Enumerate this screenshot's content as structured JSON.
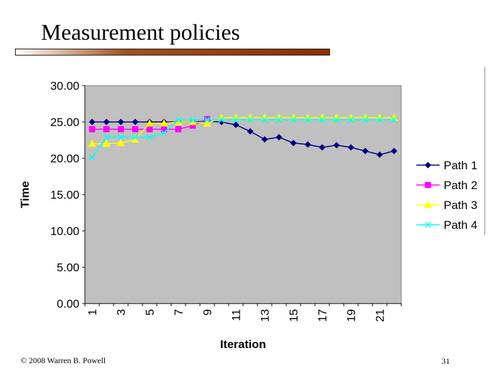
{
  "slide": {
    "title": "Measurement policies",
    "footer_left": "© 2008 Warren B. Powell",
    "page_number": "31"
  },
  "chart_data": {
    "type": "line",
    "xlabel": "Iteration",
    "ylabel": "Time",
    "ylim": [
      0,
      30
    ],
    "ytick_labels": [
      "0.00",
      "5.00",
      "10.00",
      "15.00",
      "20.00",
      "25.00",
      "30.00"
    ],
    "x": [
      1,
      2,
      3,
      4,
      5,
      6,
      7,
      8,
      9,
      10,
      11,
      12,
      13,
      14,
      15,
      16,
      17,
      18,
      19,
      20,
      21,
      22
    ],
    "xtick_labels": [
      "1",
      "3",
      "5",
      "7",
      "9",
      "11",
      "13",
      "15",
      "17",
      "19",
      "21"
    ],
    "grid": false,
    "legend_position": "right",
    "plot_background": "#c0c0c0",
    "series": [
      {
        "name": "Path 1",
        "color": "#000080",
        "marker": "diamond",
        "values": [
          25.0,
          25.0,
          25.0,
          25.0,
          25.0,
          25.0,
          25.0,
          25.0,
          25.1,
          25.0,
          24.6,
          23.7,
          22.6,
          22.9,
          22.1,
          21.9,
          21.5,
          21.8,
          21.5,
          21.0,
          20.5,
          21.0
        ]
      },
      {
        "name": "Path 2",
        "color": "#ff00ff",
        "marker": "square",
        "values": [
          24.0,
          24.0,
          24.0,
          24.0,
          24.0,
          24.0,
          24.0,
          24.5,
          25.4,
          null,
          null,
          null,
          null,
          null,
          null,
          null,
          null,
          null,
          null,
          null,
          null,
          null
        ]
      },
      {
        "name": "Path 3",
        "color": "#ffff00",
        "marker": "triangle",
        "values": [
          22.0,
          22.0,
          22.1,
          22.6,
          24.8,
          24.8,
          25.0,
          25.0,
          24.8,
          25.6,
          25.6,
          25.6,
          25.6,
          25.6,
          25.6,
          25.6,
          25.6,
          25.6,
          25.6,
          25.6,
          25.6,
          25.6
        ]
      },
      {
        "name": "Path 4",
        "color": "#00ffff",
        "marker": "x",
        "values": [
          20.1,
          22.9,
          22.9,
          22.9,
          22.9,
          23.5,
          25.3,
          25.3,
          25.3,
          25.3,
          25.3,
          25.3,
          25.3,
          25.3,
          25.3,
          25.3,
          25.3,
          25.3,
          25.3,
          25.3,
          25.3,
          25.3
        ]
      }
    ]
  }
}
